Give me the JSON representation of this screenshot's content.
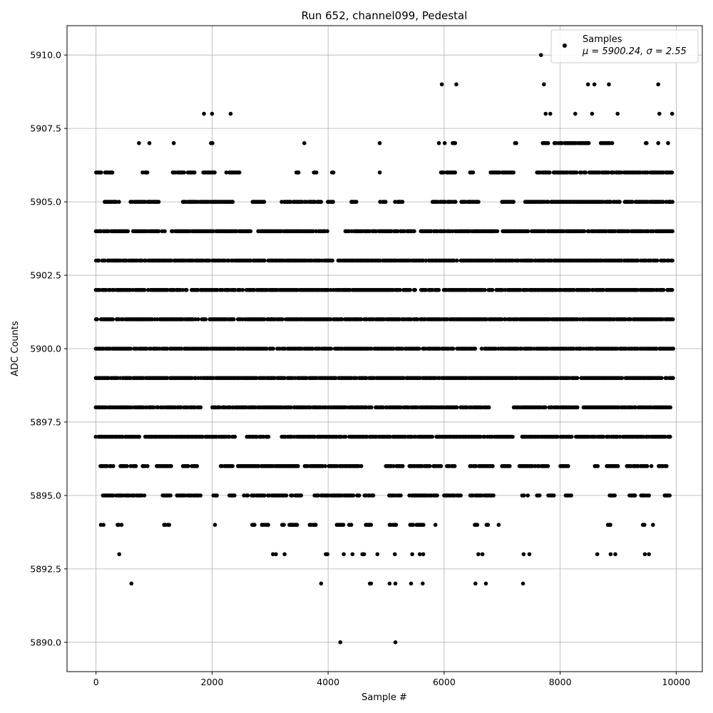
{
  "chart_data": {
    "type": "scatter",
    "title": "Run 652, channel099, Pedestal",
    "xlabel": "Sample #",
    "ylabel": "ADC Counts",
    "xlim": [
      -500,
      10450
    ],
    "ylim": [
      5889.0,
      5911.0
    ],
    "xticks": [
      0,
      2000,
      4000,
      6000,
      8000,
      10000
    ],
    "xtick_labels": [
      "0",
      "2000",
      "4000",
      "6000",
      "8000",
      "10000"
    ],
    "yticks": [
      5890.0,
      5892.5,
      5895.0,
      5897.5,
      5900.0,
      5902.5,
      5905.0,
      5907.5,
      5910.0
    ],
    "ytick_labels": [
      "5890.0",
      "5892.5",
      "5895.0",
      "5897.5",
      "5900.0",
      "5902.5",
      "5905.0",
      "5907.5",
      "5910.0"
    ],
    "grid": true,
    "legend": {
      "position": "top-right",
      "series_label": "Samples",
      "stats_label": "μ = 5900.24, σ = 2.55"
    },
    "marker_color": "#000000",
    "series": [
      {
        "name": "Samples",
        "n_samples": 10000,
        "mean": 5900.24,
        "std": 2.55,
        "levels": [
          {
            "y": 5890,
            "x": [
              4210,
              5160
            ]
          },
          {
            "y": 5892,
            "x": [
              610,
              3880,
              4720,
              4740,
              5060,
              5160,
              5430,
              5630,
              6540,
              6720,
              7360
            ]
          },
          {
            "y": 5893,
            "x": [
              400,
              3050,
              3100,
              3250,
              3960,
              3990,
              4270,
              4420,
              4590,
              4620,
              4850,
              5150,
              5450,
              5580,
              5640,
              6590,
              6660,
              7370,
              7470,
              8640,
              8870,
              8950,
              9460,
              9530
            ]
          },
          {
            "y": 5909,
            "x": [
              5960,
              6210,
              7720,
              8480,
              8590,
              8840,
              9690
            ]
          },
          {
            "y": 5910,
            "x": [
              7670
            ]
          }
        ],
        "dense_levels": [
          {
            "y": 5894,
            "ranges": [
              [
                60,
                140
              ],
              [
                370,
                450
              ],
              [
                1170,
                1280
              ],
              [
                2040,
                2060
              ],
              [
                2690,
                2750
              ],
              [
                2860,
                2980
              ],
              [
                3190,
                3240
              ],
              [
                3330,
                3470
              ],
              [
                3680,
                3790
              ],
              [
                4150,
                4260
              ],
              [
                4360,
                4420
              ],
              [
                4650,
                4750
              ],
              [
                5060,
                5180
              ],
              [
                5420,
                5480
              ],
              [
                5530,
                5660
              ],
              [
                5840,
                5860
              ],
              [
                6530,
                6600
              ],
              [
                6730,
                6760
              ],
              [
                6930,
                6950
              ],
              [
                8820,
                8880
              ],
              [
                9430,
                9460
              ],
              [
                9590,
                9610
              ]
            ]
          },
          {
            "y": 5895,
            "ranges": [
              [
                120,
                300
              ],
              [
                350,
                850
              ],
              [
                1150,
                1300
              ],
              [
                1400,
                1800
              ],
              [
                2020,
                2100
              ],
              [
                2300,
                2400
              ],
              [
                2550,
                3550
              ],
              [
                3770,
                4800
              ],
              [
                5050,
                5250
              ],
              [
                5400,
                5900
              ],
              [
                6000,
                6300
              ],
              [
                6450,
                6850
              ],
              [
                7350,
                7450
              ],
              [
                7600,
                7650
              ],
              [
                7800,
                7900
              ],
              [
                8100,
                8200
              ],
              [
                8850,
                8950
              ],
              [
                9200,
                9300
              ],
              [
                9400,
                9550
              ],
              [
                9800,
                9900
              ]
            ]
          },
          {
            "y": 5896,
            "ranges": [
              [
                80,
                300
              ],
              [
                420,
                700
              ],
              [
                800,
                900
              ],
              [
                1050,
                1300
              ],
              [
                1500,
                1600
              ],
              [
                1650,
                1750
              ],
              [
                2150,
                2350
              ],
              [
                2450,
                3500
              ],
              [
                3600,
                4600
              ],
              [
                5000,
                5300
              ],
              [
                5400,
                5950
              ],
              [
                6050,
                6200
              ],
              [
                6400,
                6850
              ],
              [
                7000,
                7150
              ],
              [
                7300,
                7800
              ],
              [
                8000,
                8150
              ],
              [
                8600,
                8650
              ],
              [
                8800,
                9000
              ],
              [
                9150,
                9600
              ],
              [
                9700,
                9850
              ]
            ]
          },
          {
            "y": 5897,
            "ranges": [
              [
                0,
                750
              ],
              [
                850,
                2400
              ],
              [
                2600,
                3000
              ],
              [
                3200,
                7200
              ],
              [
                7300,
                9900
              ]
            ]
          },
          {
            "y": 5898,
            "ranges": [
              [
                0,
                1000
              ],
              [
                1050,
                1800
              ],
              [
                2000,
                6800
              ],
              [
                7200,
                8300
              ],
              [
                8400,
                9900
              ]
            ]
          },
          {
            "y": 5899,
            "ranges": [
              [
                0,
                9950
              ]
            ]
          },
          {
            "y": 5900,
            "ranges": [
              [
                0,
                6550
              ],
              [
                6650,
                9950
              ]
            ]
          },
          {
            "y": 5901,
            "ranges": [
              [
                0,
                9950
              ]
            ]
          },
          {
            "y": 5902,
            "ranges": [
              [
                0,
                5500
              ],
              [
                5600,
                9950
              ]
            ]
          },
          {
            "y": 5903,
            "ranges": [
              [
                0,
                4100
              ],
              [
                4150,
                9950
              ]
            ]
          },
          {
            "y": 5904,
            "ranges": [
              [
                0,
                1200
              ],
              [
                1300,
                2700
              ],
              [
                2800,
                4000
              ],
              [
                4300,
                5500
              ],
              [
                5600,
                9950
              ]
            ]
          },
          {
            "y": 5905,
            "ranges": [
              [
                150,
                400
              ],
              [
                600,
                1100
              ],
              [
                1500,
                2400
              ],
              [
                2700,
                2900
              ],
              [
                3200,
                3900
              ],
              [
                4000,
                4100
              ],
              [
                4400,
                4500
              ],
              [
                4900,
                5000
              ],
              [
                5150,
                5300
              ],
              [
                5800,
                6200
              ],
              [
                6300,
                6600
              ],
              [
                7000,
                7200
              ],
              [
                7400,
                9950
              ]
            ]
          },
          {
            "y": 5906,
            "ranges": [
              [
                0,
                300
              ],
              [
                800,
                900
              ],
              [
                1300,
                1700
              ],
              [
                1850,
                2050
              ],
              [
                2250,
                2500
              ],
              [
                3450,
                3500
              ],
              [
                3750,
                3800
              ],
              [
                4050,
                4100
              ],
              [
                4880,
                4900
              ],
              [
                5950,
                6200
              ],
              [
                6450,
                6500
              ],
              [
                6800,
                7200
              ],
              [
                7600,
                9950
              ]
            ]
          },
          {
            "y": 5907,
            "ranges": [
              [
                730,
                750
              ],
              [
                910,
                930
              ],
              [
                1330,
                1350
              ],
              [
                1980,
                2020
              ],
              [
                3580,
                3600
              ],
              [
                4880,
                4900
              ],
              [
                5900,
                5920
              ],
              [
                6000,
                6020
              ],
              [
                6150,
                6200
              ],
              [
                7200,
                7300
              ],
              [
                7700,
                7800
              ],
              [
                7900,
                8500
              ],
              [
                8700,
                8900
              ],
              [
                9450,
                9500
              ],
              [
                9680,
                9700
              ],
              [
                9850,
                9870
              ]
            ]
          },
          {
            "y": 5908,
            "ranges": [
              [
                1850,
                1870
              ],
              [
                1990,
                2010
              ],
              [
                2310,
                2330
              ],
              [
                7740,
                7760
              ],
              [
                7820,
                7840
              ],
              [
                8250,
                8270
              ],
              [
                8540,
                8560
              ],
              [
                8980,
                9000
              ],
              [
                9700,
                9720
              ],
              [
                9920,
                9940
              ]
            ]
          }
        ]
      }
    ]
  }
}
